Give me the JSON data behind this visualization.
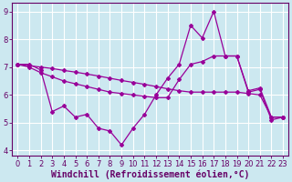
{
  "xlabel": "Windchill (Refroidissement éolien,°C)",
  "background_color": "#cce8f0",
  "line_color": "#990099",
  "grid_color": "#aad4e0",
  "xlim": [
    -0.5,
    23.5
  ],
  "ylim": [
    3.8,
    9.3
  ],
  "yticks": [
    4,
    5,
    6,
    7,
    8,
    9
  ],
  "xticks": [
    0,
    1,
    2,
    3,
    4,
    5,
    6,
    7,
    8,
    9,
    10,
    11,
    12,
    13,
    14,
    15,
    16,
    17,
    18,
    19,
    20,
    21,
    22,
    23
  ],
  "series1_x": [
    0,
    1,
    2,
    3,
    4,
    5,
    6,
    7,
    8,
    9,
    10,
    11,
    12,
    13,
    14,
    15,
    16,
    17,
    18,
    19,
    20,
    21,
    22,
    23
  ],
  "series1_y": [
    7.1,
    7.1,
    6.9,
    5.4,
    5.6,
    5.2,
    5.3,
    4.8,
    4.7,
    4.2,
    4.8,
    5.3,
    6.0,
    6.6,
    7.1,
    8.5,
    8.05,
    9.0,
    7.4,
    7.4,
    6.1,
    6.2,
    5.1,
    5.2
  ],
  "series2_x": [
    0,
    1,
    2,
    3,
    4,
    5,
    6,
    7,
    8,
    9,
    10,
    11,
    12,
    13,
    14,
    15,
    16,
    17,
    18,
    19,
    20,
    21,
    22,
    23
  ],
  "series2_y": [
    7.1,
    7.0,
    6.8,
    6.65,
    6.5,
    6.4,
    6.3,
    6.2,
    6.1,
    6.05,
    6.0,
    5.95,
    5.9,
    5.9,
    6.55,
    7.1,
    7.2,
    7.4,
    7.4,
    7.4,
    6.15,
    6.25,
    5.2,
    5.2
  ],
  "series3_x": [
    0,
    1,
    2,
    3,
    4,
    5,
    6,
    7,
    8,
    9,
    10,
    11,
    12,
    13,
    14,
    15,
    16,
    17,
    18,
    19,
    20,
    21,
    22,
    23
  ],
  "series3_y": [
    7.1,
    7.05,
    7.0,
    6.95,
    6.88,
    6.82,
    6.75,
    6.68,
    6.6,
    6.52,
    6.45,
    6.38,
    6.3,
    6.22,
    6.15,
    6.1,
    6.1,
    6.1,
    6.1,
    6.1,
    6.05,
    6.0,
    5.2,
    5.2
  ],
  "tick_fontsize": 6.0,
  "label_fontsize": 7.0
}
